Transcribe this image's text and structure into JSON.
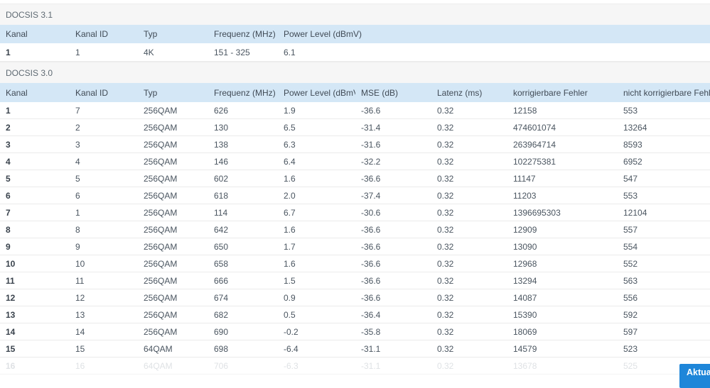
{
  "colors": {
    "header_bg": "#d4e7f6",
    "section_bg": "#f6f6f6",
    "button_bg": "#1e86d9"
  },
  "docsis31": {
    "section_title": "DOCSIS 3.1",
    "columns": [
      "Kanal",
      "Kanal ID",
      "Typ",
      "Frequenz (MHz)",
      "Power Level (dBmV)"
    ],
    "rows": [
      [
        "1",
        "1",
        "4K",
        "151 - 325",
        "6.1"
      ]
    ]
  },
  "docsis30": {
    "section_title": "DOCSIS 3.0",
    "columns": [
      "Kanal",
      "Kanal ID",
      "Typ",
      "Frequenz (MHz)",
      "Power Level (dBmV)",
      "MSE (dB)",
      "Latenz (ms)",
      "korrigierbare Fehler",
      "nicht korrigierbare Fehler"
    ],
    "rows": [
      [
        "1",
        "7",
        "256QAM",
        "626",
        "1.9",
        "-36.6",
        "0.32",
        "12158",
        "553"
      ],
      [
        "2",
        "2",
        "256QAM",
        "130",
        "6.5",
        "-31.4",
        "0.32",
        "474601074",
        "13264"
      ],
      [
        "3",
        "3",
        "256QAM",
        "138",
        "6.3",
        "-31.6",
        "0.32",
        "263964714",
        "8593"
      ],
      [
        "4",
        "4",
        "256QAM",
        "146",
        "6.4",
        "-32.2",
        "0.32",
        "102275381",
        "6952"
      ],
      [
        "5",
        "5",
        "256QAM",
        "602",
        "1.6",
        "-36.6",
        "0.32",
        "11147",
        "547"
      ],
      [
        "6",
        "6",
        "256QAM",
        "618",
        "2.0",
        "-37.4",
        "0.32",
        "11203",
        "553"
      ],
      [
        "7",
        "1",
        "256QAM",
        "114",
        "6.7",
        "-30.6",
        "0.32",
        "1396695303",
        "12104"
      ],
      [
        "8",
        "8",
        "256QAM",
        "642",
        "1.6",
        "-36.6",
        "0.32",
        "12909",
        "557"
      ],
      [
        "9",
        "9",
        "256QAM",
        "650",
        "1.7",
        "-36.6",
        "0.32",
        "13090",
        "554"
      ],
      [
        "10",
        "10",
        "256QAM",
        "658",
        "1.6",
        "-36.6",
        "0.32",
        "12968",
        "552"
      ],
      [
        "11",
        "11",
        "256QAM",
        "666",
        "1.5",
        "-36.6",
        "0.32",
        "13294",
        "563"
      ],
      [
        "12",
        "12",
        "256QAM",
        "674",
        "0.9",
        "-36.6",
        "0.32",
        "14087",
        "556"
      ],
      [
        "13",
        "13",
        "256QAM",
        "682",
        "0.5",
        "-36.4",
        "0.32",
        "15390",
        "592"
      ],
      [
        "14",
        "14",
        "256QAM",
        "690",
        "-0.2",
        "-35.8",
        "0.32",
        "18069",
        "597"
      ],
      [
        "15",
        "15",
        "64QAM",
        "698",
        "-6.4",
        "-31.1",
        "0.32",
        "14579",
        "523"
      ],
      [
        "16",
        "16",
        "64QAM",
        "706",
        "-6.3",
        "-31.1",
        "0.32",
        "13678",
        "525"
      ]
    ],
    "faded_row_index": 15
  },
  "footer": {
    "refresh_button_label": "Aktualisieren"
  }
}
